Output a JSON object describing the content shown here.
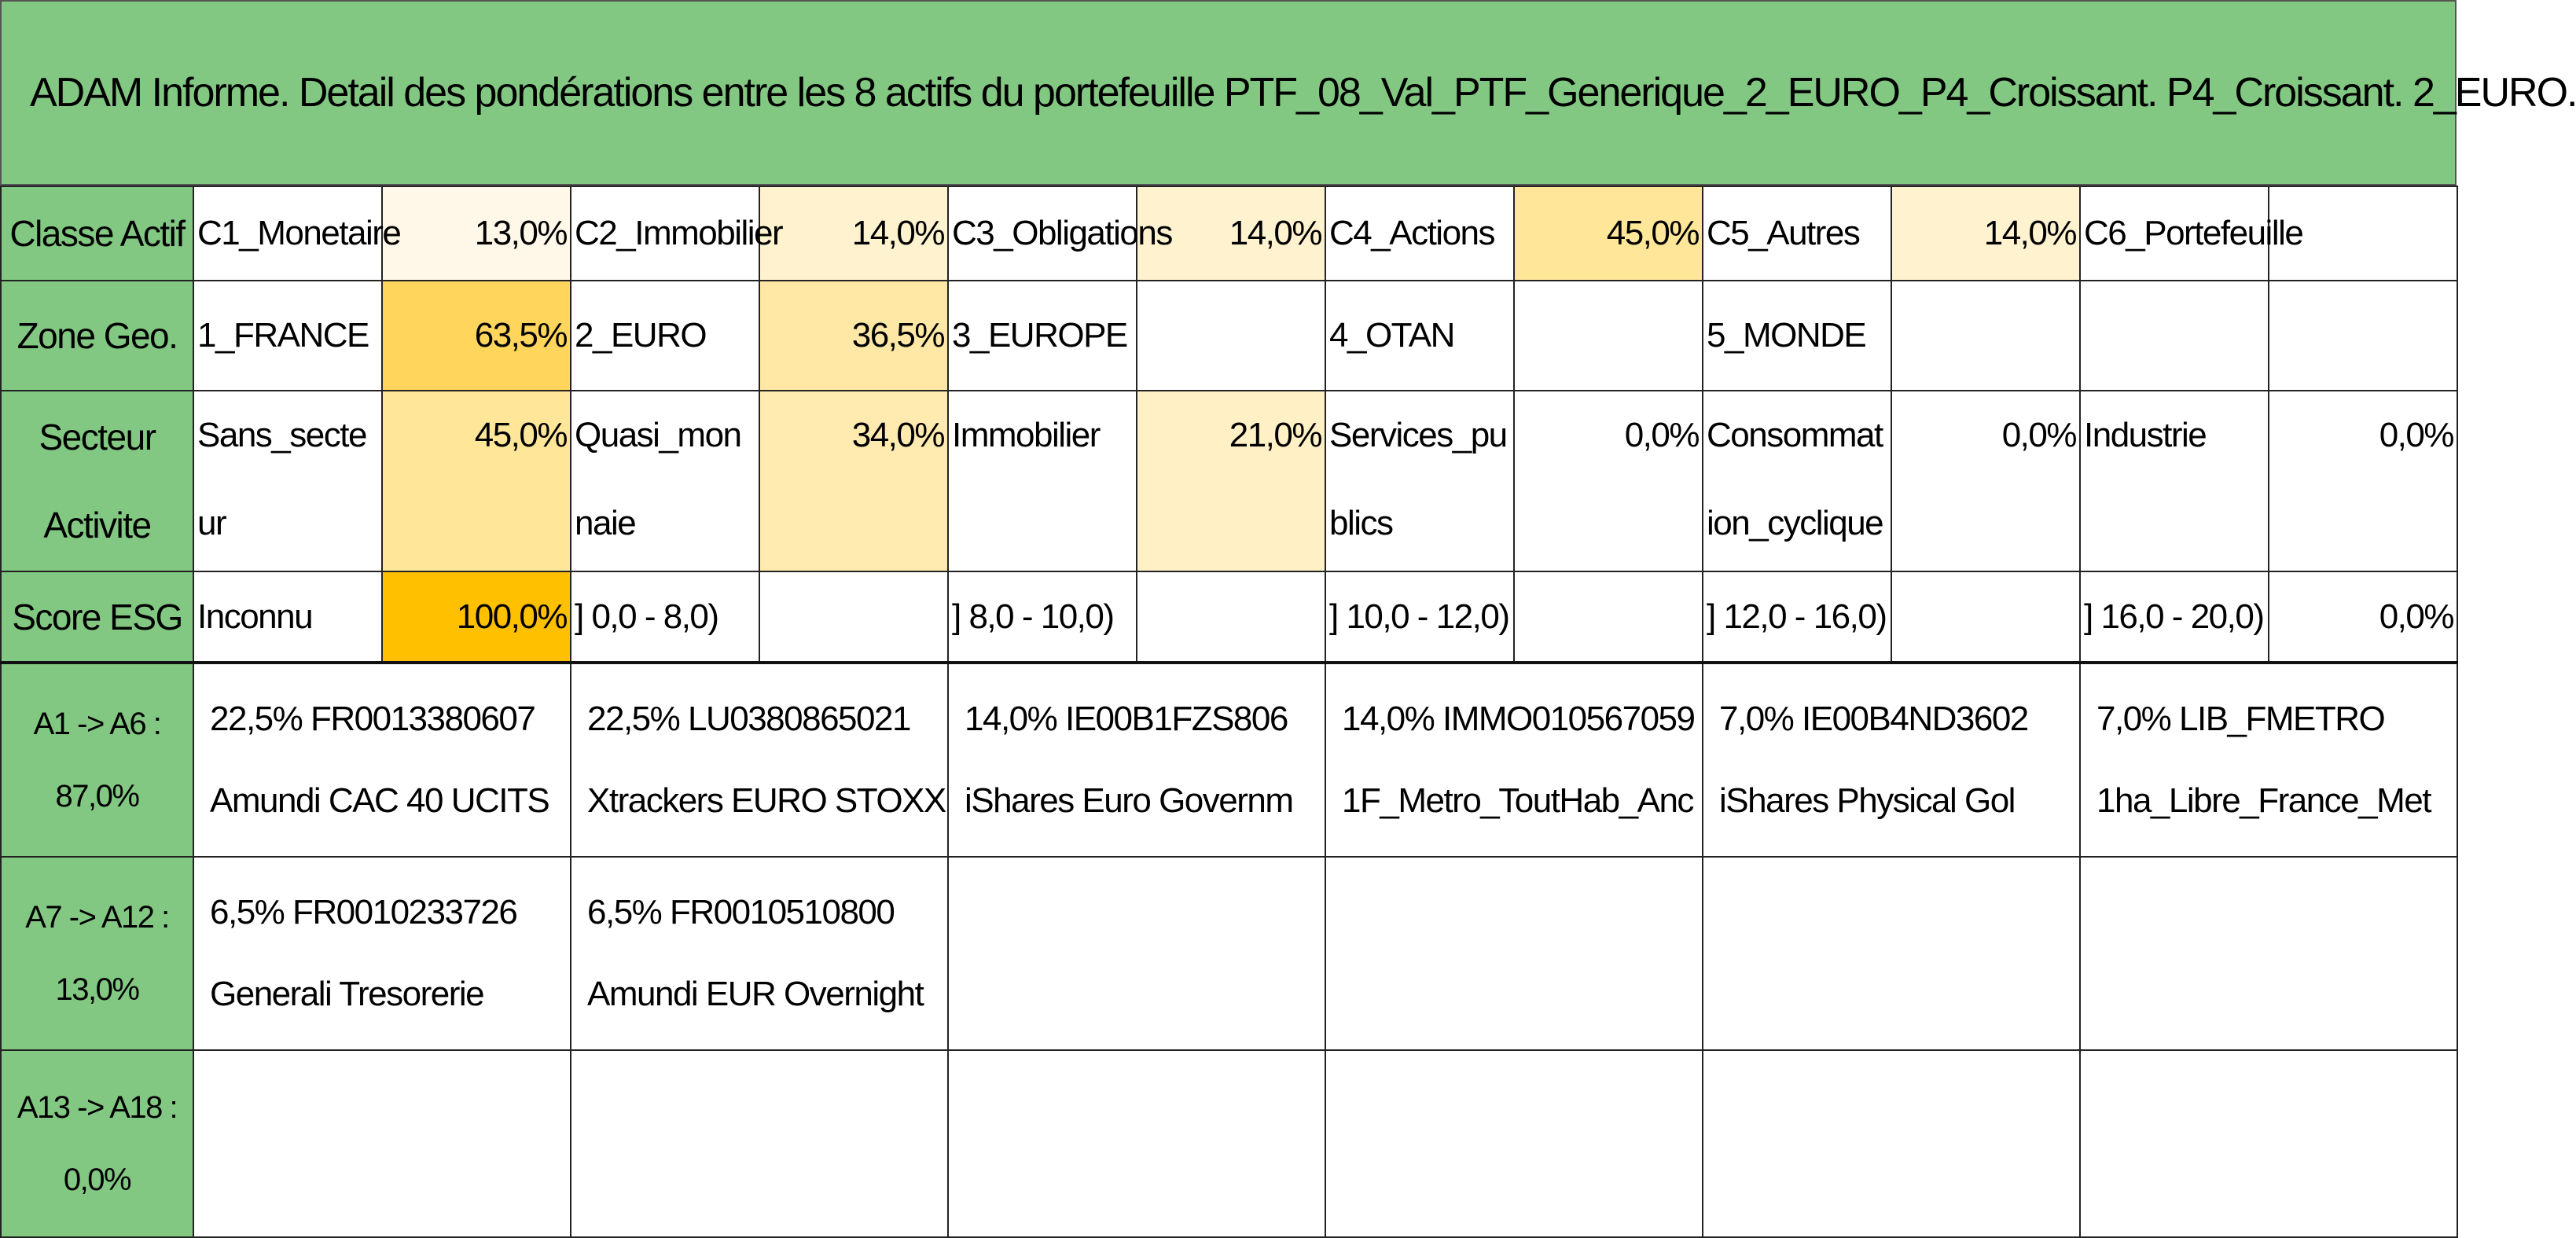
{
  "title": "ADAM Informe. Detail des pondérations entre les 8 actifs du portefeuille PTF_08_Val_PTF_Generique_2_EURO_P4_Croissant. P4_Croissant. 2_EURO.",
  "rows": [
    {
      "label": "Classe Actif",
      "cells": [
        [
          "C1_Monetaire",
          "13,0%"
        ],
        [
          "C2_Immobilier",
          "14,0%"
        ],
        [
          "C3_Obligations",
          "14,0%"
        ],
        [
          "C4_Actions",
          "45,0%"
        ],
        [
          "C5_Autres",
          "14,0%"
        ],
        [
          "C6_Portefeuille",
          null
        ]
      ]
    },
    {
      "label": "Zone Geo.",
      "cells": [
        [
          "1_FRANCE",
          "63,5%"
        ],
        [
          "2_EURO",
          "36,5%"
        ],
        [
          "3_EUROPE",
          null
        ],
        [
          "4_OTAN",
          null
        ],
        [
          "5_MONDE",
          null
        ],
        [
          null,
          null
        ]
      ]
    },
    {
      "label": "Secteur Activite",
      "cells": [
        [
          "Sans_secteur",
          "45,0%"
        ],
        [
          "Quasi_monnaie",
          "34,0%"
        ],
        [
          "Immobilier",
          "21,0%"
        ],
        [
          "Services_publics",
          "0,0%"
        ],
        [
          "Consommation_cyclique",
          "0,0%"
        ],
        [
          "Industrie",
          "0,0%"
        ]
      ]
    },
    {
      "label": "Score ESG",
      "cells": [
        [
          "Inconnu",
          "100,0%"
        ],
        [
          "] 0,0 - 8,0)",
          null
        ],
        [
          "] 8,0 - 10,0)",
          null
        ],
        [
          "] 10,0 - 12,0)",
          null
        ],
        [
          "] 12,0 - 16,0)",
          null
        ],
        [
          "] 16,0 - 20,0)",
          "0,0%"
        ]
      ]
    }
  ],
  "assets": [
    {
      "label": [
        "A1 -> A6 :",
        "87,0%"
      ],
      "items": [
        [
          "22,5% FR0013380607",
          "Amundi CAC 40 UCITS"
        ],
        [
          "22,5% LU0380865021",
          "Xtrackers EURO STOXX"
        ],
        [
          "14,0% IE00B1FZS806",
          "iShares Euro Governm"
        ],
        [
          "14,0% IMMO010567059",
          "1F_Metro_ToutHab_Anc"
        ],
        [
          "7,0% IE00B4ND3602",
          "iShares Physical Gol"
        ],
        [
          "7,0% LIB_FMETRO",
          "1ha_Libre_France_Met"
        ]
      ]
    },
    {
      "label": [
        "A7 -> A12 :",
        "13,0%"
      ],
      "items": [
        [
          "6,5% FR0010233726",
          "Generali Tresorerie"
        ],
        [
          "6,5% FR0010510800",
          "Amundi EUR Overnight"
        ]
      ]
    },
    {
      "label": [
        "A13 -> A18 :",
        "0,0%"
      ],
      "items": []
    }
  ]
}
